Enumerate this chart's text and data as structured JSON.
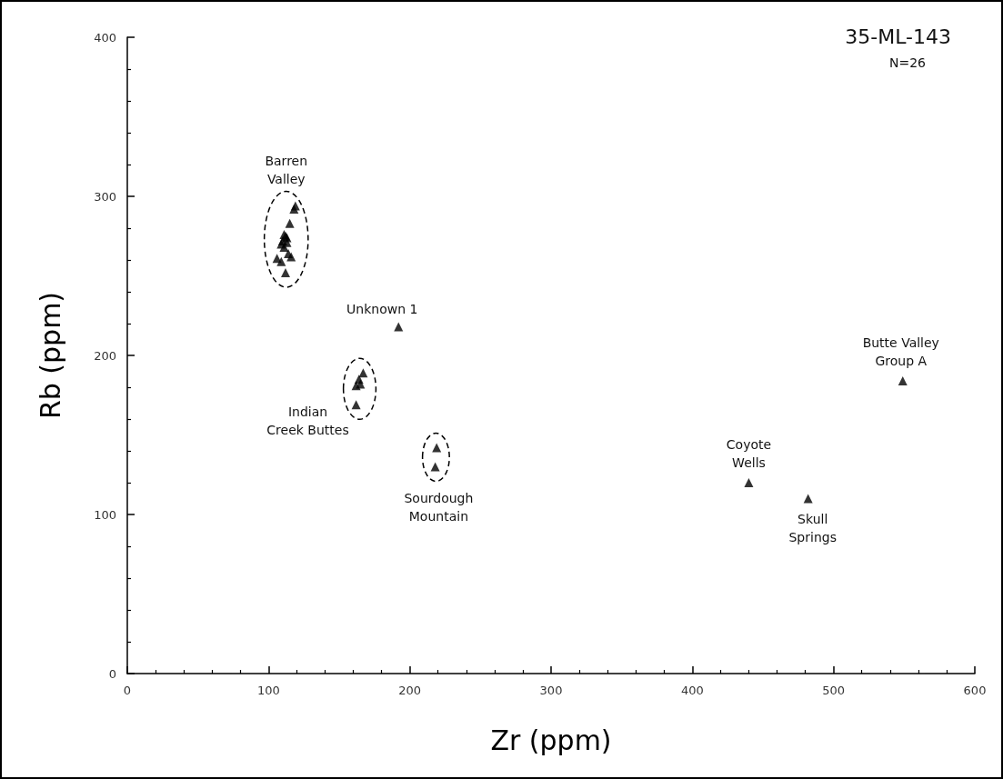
{
  "chart_data": {
    "type": "scatter",
    "title": "35-ML-143",
    "subtitle": "N=26",
    "xlabel": "Zr (ppm)",
    "ylabel": "Rb (ppm)",
    "xlim": [
      0,
      600
    ],
    "xticks": [
      0,
      100,
      200,
      300,
      400,
      500,
      600
    ],
    "ylim": [
      0,
      400
    ],
    "yticks": [
      0,
      100,
      200,
      300,
      400
    ],
    "grid": false,
    "marker": "triangle",
    "series": [
      {
        "name": "Barren\nValley",
        "color": "#000000",
        "x": [
          119,
          118,
          115,
          111,
          113,
          112,
          109,
          111,
          114,
          106,
          109,
          112,
          110,
          116,
          113
        ],
        "values": [
          294,
          292,
          283,
          276,
          274,
          275,
          270,
          268,
          264,
          261,
          259,
          252,
          272,
          262,
          271
        ]
      },
      {
        "name": "Indian\nCreek Buttes",
        "color": "#000000",
        "x": [
          167,
          164,
          162,
          165,
          162
        ],
        "values": [
          189,
          185,
          181,
          182,
          169
        ]
      },
      {
        "name": "Sourdough\nMountain",
        "color": "#000000",
        "x": [
          219,
          218
        ],
        "values": [
          142,
          130
        ]
      },
      {
        "name": "Unknown 1",
        "color": "#000000",
        "x": [
          192
        ],
        "values": [
          218
        ]
      },
      {
        "name": "Butte Valley\nGroup A",
        "color": "#000000",
        "x": [
          549
        ],
        "values": [
          184
        ]
      },
      {
        "name": "Coyote\nWells",
        "color": "#000000",
        "x": [
          440
        ],
        "values": [
          120
        ]
      },
      {
        "name": "Skull\nSprings",
        "color": "#000000",
        "x": [
          482
        ],
        "values": [
          110
        ]
      }
    ]
  }
}
